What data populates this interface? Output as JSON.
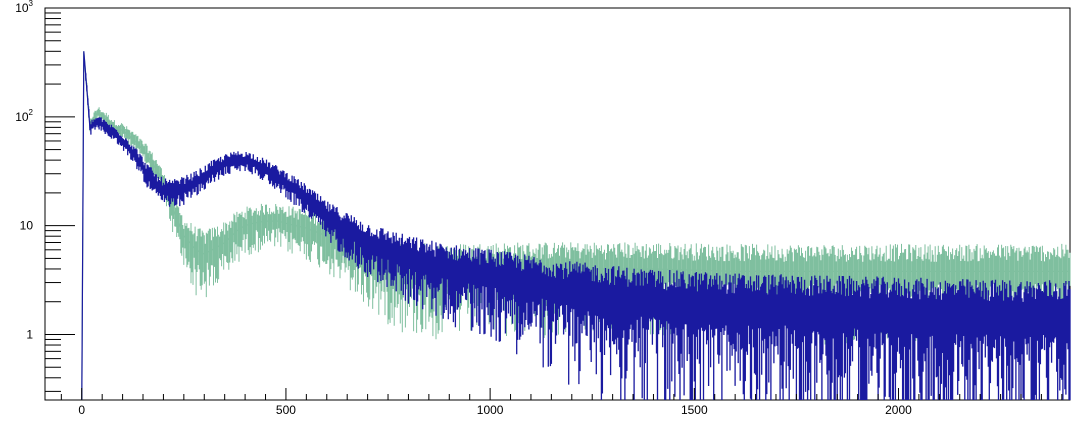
{
  "chart_data": {
    "type": "line",
    "title": "",
    "xlabel": "",
    "ylabel": "",
    "xlim": [
      -90,
      2420
    ],
    "ylim": [
      0.25,
      1000
    ],
    "y_scale": "log",
    "grid": false,
    "legend": "none",
    "x_tick_labels": [
      "0",
      "500",
      "1000",
      "1500",
      "2000"
    ],
    "x_ticks": [
      0,
      500,
      1000,
      1500,
      2000
    ],
    "y_tick_labels": [
      {
        "value": 1,
        "base": "1",
        "exp": ""
      },
      {
        "value": 10,
        "base": "10",
        "exp": ""
      },
      {
        "value": 100,
        "base": "10",
        "exp": "2"
      },
      {
        "value": 1000,
        "base": "10",
        "exp": "3"
      }
    ],
    "series": [
      {
        "color": "#7fbf9f",
        "x": [
          0,
          5,
          20,
          40,
          60,
          80,
          100,
          130,
          160,
          190,
          220,
          250,
          280,
          300,
          320,
          350,
          380,
          400,
          420,
          450,
          480,
          500,
          550,
          600,
          700,
          800,
          900,
          1000,
          1200,
          1400,
          1600,
          1800,
          2000,
          2200,
          2420
        ],
        "values": [
          0.25,
          400,
          85,
          110,
          95,
          80,
          75,
          60,
          45,
          30,
          15,
          8,
          6,
          5.5,
          6,
          7,
          9,
          10,
          10.5,
          11,
          11,
          10.5,
          9.5,
          8,
          5,
          4,
          3.8,
          4,
          4,
          4,
          3.8,
          3.8,
          3.8,
          3.8,
          3.8
        ]
      },
      {
        "color": "#1a1aa0",
        "x": [
          0,
          5,
          20,
          40,
          60,
          80,
          100,
          130,
          160,
          190,
          220,
          250,
          280,
          300,
          320,
          350,
          380,
          400,
          420,
          450,
          480,
          500,
          550,
          600,
          700,
          800,
          900,
          1000,
          1200,
          1400,
          1600,
          1800,
          2000,
          2200,
          2420
        ],
        "values": [
          0.25,
          400,
          80,
          90,
          80,
          70,
          60,
          45,
          30,
          22,
          20,
          22,
          25,
          28,
          32,
          37,
          40,
          40,
          38,
          33,
          28,
          25,
          18,
          12,
          7,
          5,
          4,
          3.5,
          2.5,
          2,
          1.8,
          1.7,
          1.6,
          1.5,
          1.5
        ]
      }
    ]
  }
}
